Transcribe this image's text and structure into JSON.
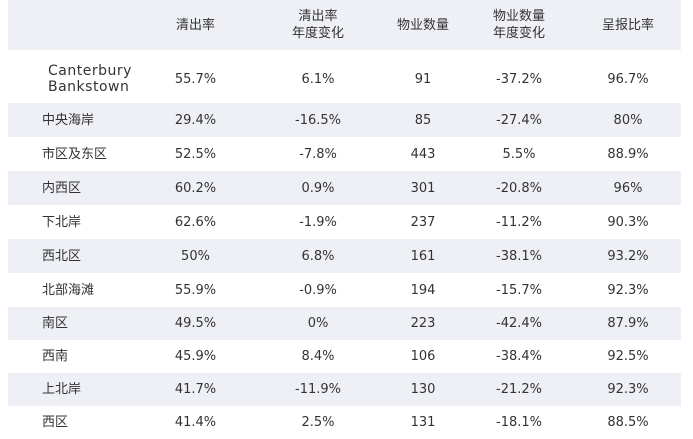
{
  "headers": [
    "",
    "清出率",
    "清出率\n年度变化",
    "物业数量",
    "物业数量\n年度变化",
    "呈报比率"
  ],
  "rows": [
    [
      "Canterbury\nBankstown",
      "55.7%",
      "6.1%",
      "91",
      "-37.2%",
      "96.7%"
    ],
    [
      "中央海岸",
      "29.4%",
      "-16.5%",
      "85",
      "-27.4%",
      "80%"
    ],
    [
      "市区及东区",
      "52.5%",
      "-7.8%",
      "443",
      "5.5%",
      "88.9%"
    ],
    [
      "内西区",
      "60.2%",
      "0.9%",
      "301",
      "-20.8%",
      "96%"
    ],
    [
      "下北岸",
      "62.6%",
      "-1.9%",
      "237",
      "-11.2%",
      "90.3%"
    ],
    [
      "西北区",
      "50%",
      "6.8%",
      "161",
      "-38.1%",
      "93.2%"
    ],
    [
      "北部海滩",
      "55.9%",
      "-0.9%",
      "194",
      "-15.7%",
      "92.3%"
    ],
    [
      "南区",
      "49.5%",
      "0%",
      "223",
      "-42.4%",
      "87.9%"
    ],
    [
      "西南",
      "45.9%",
      "8.4%",
      "106",
      "-38.4%",
      "92.5%"
    ],
    [
      "上北岸",
      "41.7%",
      "-11.9%",
      "130",
      "-21.2%",
      "92.3%"
    ],
    [
      "西区",
      "41.4%",
      "2.5%",
      "131",
      "-18.1%",
      "88.5%"
    ]
  ],
  "colors": {
    "stripe": "#eef0f6",
    "text": "#333333"
  }
}
